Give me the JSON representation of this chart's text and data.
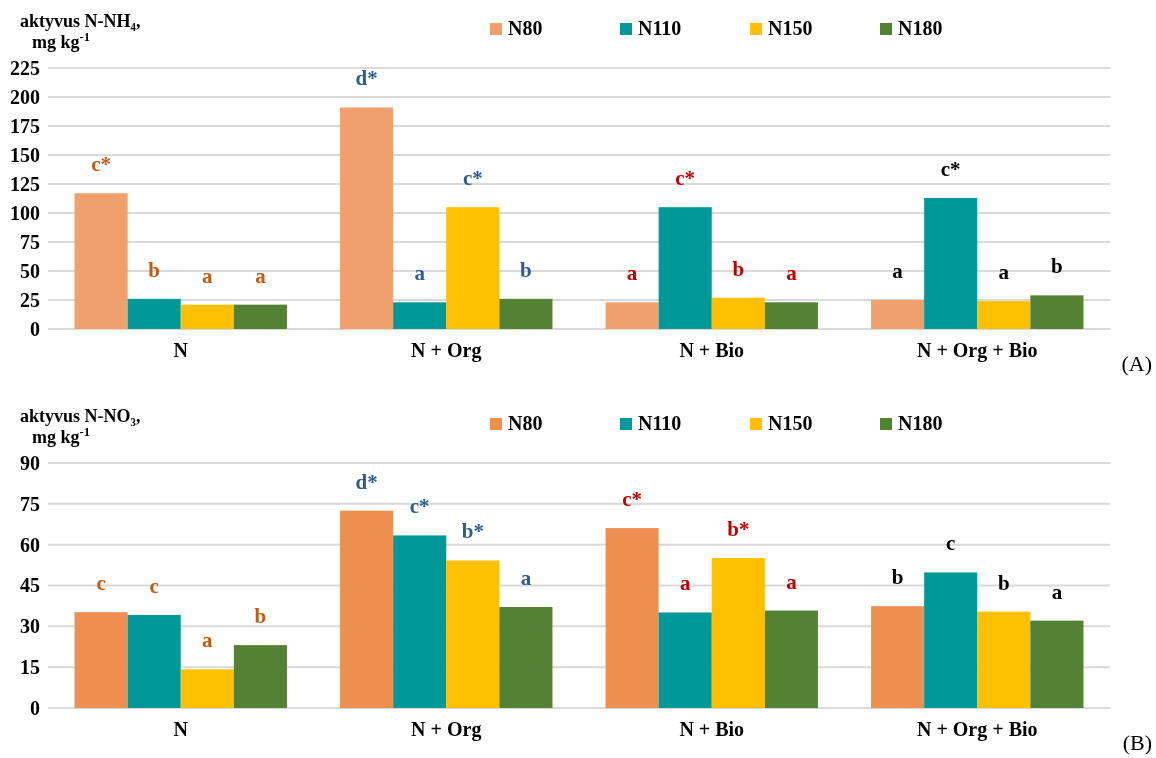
{
  "chart_data": [
    {
      "type": "bar",
      "ylabel": "aktyvus N-NH₄, mg kg$^{-1}$",
      "categories": [
        "N",
        "N + Org",
        "N + Bio",
        "N + Org + Bio"
      ],
      "ylim": [
        0,
        225
      ],
      "yticks": [
        0,
        25,
        50,
        75,
        100,
        125,
        150,
        175,
        200,
        225
      ],
      "grid": "y",
      "legend": "top right",
      "series": [
        {
          "name": "N80",
          "color": "#f0a06c",
          "values": [
            117,
            191,
            23,
            25
          ],
          "value_labels": [
            "c*",
            "d*",
            "a",
            "a"
          ]
        },
        {
          "name": "N110",
          "color": "#009999",
          "values": [
            26,
            23,
            105,
            113
          ],
          "value_labels": [
            "b",
            "a",
            "c*",
            "c*"
          ]
        },
        {
          "name": "N150",
          "color": "#ffc000",
          "values": [
            21,
            105,
            27,
            24
          ],
          "value_labels": [
            "a",
            "c*",
            "b",
            "a"
          ]
        },
        {
          "name": "N180",
          "color": "#548235",
          "values": [
            21,
            26,
            23,
            29
          ],
          "value_labels": [
            "a",
            "b",
            "a",
            "b"
          ]
        }
      ],
      "annotations": [
        "(A)"
      ]
    },
    {
      "type": "bar",
      "ylabel": "aktyvus N-NO₃, mg kg$^{-1}$",
      "categories": [
        "N",
        "N + Org",
        "N + Bio",
        "N + Org + Bio"
      ],
      "ylim": [
        0,
        90
      ],
      "yticks": [
        0,
        15,
        30,
        45,
        60,
        75,
        90
      ],
      "grid": "y",
      "legend": "top right",
      "series": [
        {
          "name": "N80",
          "color": "#ed8f4f",
          "values": [
            35.2,
            72.5,
            66.1,
            37.4
          ],
          "value_labels": [
            "c",
            "d*",
            "c*",
            "b"
          ]
        },
        {
          "name": "N110",
          "color": "#009999",
          "values": [
            34.2,
            63.4,
            35.1,
            49.8
          ],
          "value_labels": [
            "c",
            "c*",
            "a",
            "c"
          ]
        },
        {
          "name": "N150",
          "color": "#ffc000",
          "values": [
            14.2,
            54.2,
            55.1,
            35.4
          ],
          "value_labels": [
            "a",
            "b*",
            "b*",
            "b"
          ]
        },
        {
          "name": "N180",
          "color": "#548235",
          "values": [
            23.1,
            37.1,
            35.8,
            32.1
          ],
          "value_labels": [
            "b",
            "a",
            "a",
            "a"
          ]
        }
      ],
      "annotations": [
        "(B)"
      ]
    }
  ]
}
